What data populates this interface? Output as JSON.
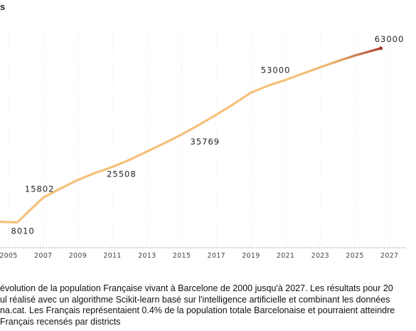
{
  "chart_data": {
    "type": "line",
    "title": "s",
    "x": [
      2004,
      2005.5,
      2007,
      2008,
      2009,
      2010,
      2011,
      2012,
      2013,
      2014,
      2015,
      2016,
      2017,
      2018,
      2019,
      2020,
      2021,
      2022,
      2023,
      2024,
      2025,
      2026.5
    ],
    "y": [
      8300,
      8010,
      15802,
      18700,
      21400,
      23600,
      25508,
      27800,
      30400,
      33000,
      35769,
      38800,
      42000,
      45400,
      49000,
      51200,
      53000,
      55000,
      57000,
      58900,
      60700,
      63000
    ],
    "point_labels": [
      {
        "x": 2005.5,
        "y": 8010,
        "text": "8010"
      },
      {
        "x": 2007,
        "y": 15802,
        "text": "15802"
      },
      {
        "x": 2011,
        "y": 25508,
        "text": "25508"
      },
      {
        "x": 2015,
        "y": 35769,
        "text": "35769"
      },
      {
        "x": 2021,
        "y": 53000,
        "text": "53000"
      },
      {
        "x": 2026.5,
        "y": 63000,
        "text": "63000"
      }
    ],
    "x_ticks": [
      2005,
      2007,
      2009,
      2011,
      2013,
      2015,
      2017,
      2019,
      2021,
      2023,
      2025,
      2027
    ],
    "xlim": [
      2004,
      2028
    ],
    "ylim": [
      0,
      67000
    ],
    "colors": {
      "line_start": "#f6c07a",
      "line_mid": "#eab26e",
      "line_end": "#a83a2a",
      "grid": "#ececec",
      "axis": "#9a9a9a"
    },
    "grid": true
  },
  "caption_lines": [
    "évolution de la population Française vivant à Barcelone de 2000 jusqu'à 2027. Les résultats pour 20",
    "ul réalisé avec un algorithme Scikit-learn basé sur l'intelligence artificielle et combinant les données",
    "na.cat. Les Français représentaient 0.4% de la population totale Barcelonaise et pourraient atteindre",
    "Français recensés par districts"
  ]
}
